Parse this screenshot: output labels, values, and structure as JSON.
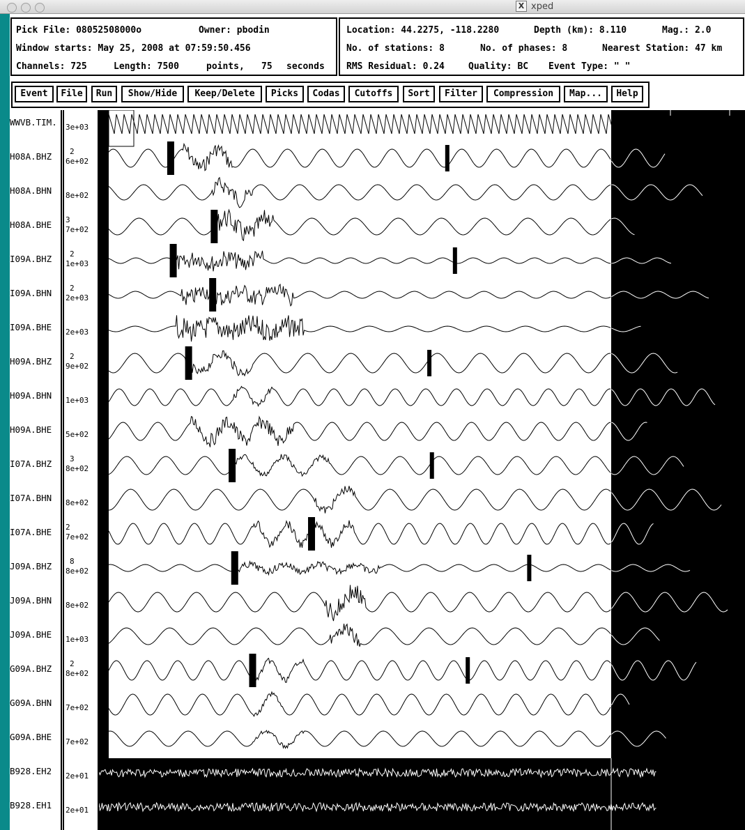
{
  "window": {
    "title": "xped"
  },
  "header": {
    "pick_file_label": "Pick File:",
    "pick_file_value": "08052508000o",
    "owner_label": "Owner:",
    "owner_value": "pbodin",
    "window_starts_label": "Window starts:",
    "window_starts_value": "May 25, 2008 at 07:59:50.456",
    "channels_label": "Channels:",
    "channels_value": "725",
    "length_label": "Length:",
    "length_value": "7500",
    "points_label": "points,",
    "seconds_value": "75",
    "seconds_label": "seconds"
  },
  "event_info": {
    "location_label": "Location:",
    "location_value": "44.2275, -118.2280",
    "depth_label": "Depth (km):",
    "depth_value": "8.110",
    "mag_label": "Mag.:",
    "mag_value": "2.0",
    "stations_label": "No. of stations:",
    "stations_value": "8",
    "phases_label": "No. of phases:",
    "phases_value": "8",
    "nearest_label": "Nearest Station:",
    "nearest_value": "47 km",
    "rms_label": "RMS Residual:",
    "rms_value": "0.24",
    "quality_label": "Quality:",
    "quality_value": "BC",
    "event_type_label": "Event Type:",
    "event_type_value": "\" \""
  },
  "toolbar": {
    "buttons": [
      "Event",
      "File",
      "Run",
      "Show/Hide",
      "Keep/Delete",
      "Picks",
      "Codas",
      "Cutoffs",
      "Sort",
      "Filter",
      "Compression",
      "Map...",
      "Help"
    ]
  },
  "channels": [
    {
      "name": "WWVB.TIM.",
      "scale": "3e+03",
      "sup": "",
      "kind": "timecode"
    },
    {
      "name": "H08A.BHZ",
      "scale": "6e+02",
      "sup": "2",
      "kind": "wave",
      "picks": [
        0.14,
        0.68
      ],
      "burst": [
        0.16,
        0.26
      ],
      "amp": 13,
      "noise": 10
    },
    {
      "name": "H08A.BHN",
      "scale": "8e+02",
      "sup": "",
      "kind": "wave",
      "picks": [],
      "burst": [
        0.22,
        0.3
      ],
      "amp": 11,
      "noise": 12
    },
    {
      "name": "H08A.BHE",
      "scale": "7e+02",
      "sup": "3",
      "kind": "wave",
      "picks": [
        0.225
      ],
      "burst": [
        0.22,
        0.34
      ],
      "amp": 12,
      "noise": 14
    },
    {
      "name": "I09A.BHZ",
      "scale": "1e+03",
      "sup": "2",
      "kind": "wave",
      "picks": [
        0.145,
        0.695
      ],
      "burst": [
        0.15,
        0.32
      ],
      "amp": 4,
      "noise": 12
    },
    {
      "name": "I09A.BHN",
      "scale": "2e+03",
      "sup": "2",
      "kind": "wave",
      "picks": [
        0.222
      ],
      "burst": [
        0.16,
        0.38
      ],
      "amp": 5,
      "noise": 12
    },
    {
      "name": "I09A.BHE",
      "scale": "2e+03",
      "sup": "",
      "kind": "wave",
      "picks": [],
      "burst": [
        0.15,
        0.4
      ],
      "amp": 4,
      "noise": 16
    },
    {
      "name": "H09A.BHZ",
      "scale": "9e+02",
      "sup": "2",
      "kind": "wave",
      "picks": [
        0.175,
        0.645
      ],
      "burst": [
        0.17,
        0.3
      ],
      "amp": 14,
      "noise": 7
    },
    {
      "name": "H09A.BHN",
      "scale": "1e+03",
      "sup": "",
      "kind": "wave",
      "picks": [],
      "burst": [
        0.26,
        0.34
      ],
      "amp": 12,
      "noise": 5
    },
    {
      "name": "H09A.BHE",
      "scale": "5e+02",
      "sup": "",
      "kind": "wave",
      "picks": [],
      "burst": [
        0.18,
        0.38
      ],
      "amp": 13,
      "noise": 10
    },
    {
      "name": "I07A.BHZ",
      "scale": "8e+02",
      "sup": "3",
      "kind": "wave",
      "picks": [
        0.26,
        0.65
      ],
      "burst": [
        0.26,
        0.45
      ],
      "amp": 13,
      "noise": 4
    },
    {
      "name": "I07A.BHN",
      "scale": "8e+02",
      "sup": "",
      "kind": "wave",
      "picks": [],
      "burst": [
        0.42,
        0.5
      ],
      "amp": 15,
      "noise": 6
    },
    {
      "name": "I07A.BHE",
      "scale": "7e+02",
      "sup": "2",
      "kind": "wave",
      "picks": [
        0.415
      ],
      "burst": [
        0.3,
        0.5
      ],
      "amp": 15,
      "noise": 6
    },
    {
      "name": "J09A.BHZ",
      "scale": "8e+02",
      "sup": "8",
      "kind": "wave",
      "picks": [
        0.265,
        0.84
      ],
      "burst": [
        0.27,
        0.55
      ],
      "amp": 5,
      "noise": 5
    },
    {
      "name": "J09A.BHN",
      "scale": "8e+02",
      "sup": "",
      "kind": "wave",
      "picks": [],
      "burst": [
        0.44,
        0.52
      ],
      "amp": 14,
      "noise": 14
    },
    {
      "name": "J09A.BHE",
      "scale": "1e+03",
      "sup": "",
      "kind": "wave",
      "picks": [],
      "burst": [
        0.45,
        0.51
      ],
      "amp": 12,
      "noise": 10
    },
    {
      "name": "G09A.BHZ",
      "scale": "8e+02",
      "sup": "2",
      "kind": "wave",
      "picks": [
        0.3,
        0.72
      ],
      "burst": [
        0.3,
        0.4
      ],
      "amp": 14,
      "noise": 4
    },
    {
      "name": "G09A.BHN",
      "scale": "7e+02",
      "sup": "",
      "kind": "wave",
      "picks": [],
      "burst": [
        0.3,
        0.36
      ],
      "amp": 15,
      "noise": 3
    },
    {
      "name": "G09A.BHE",
      "scale": "7e+02",
      "sup": "",
      "kind": "wave",
      "picks": [],
      "burst": [
        0.3,
        0.4
      ],
      "amp": 11,
      "noise": 3
    },
    {
      "name": "B928.EH2",
      "scale": "2e+01",
      "sup": "",
      "kind": "noise"
    },
    {
      "name": "B928.EH1",
      "scale": "2e+01",
      "sup": "",
      "kind": "noise"
    }
  ]
}
